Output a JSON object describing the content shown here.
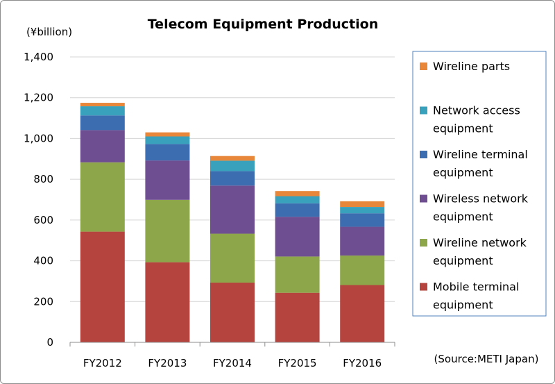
{
  "chart_data": {
    "type": "bar",
    "stacked": true,
    "title": "Telecom Equipment Production",
    "unit_label": "(¥billion)",
    "source": "(Source:METI Japan)",
    "categories": [
      "FY2012",
      "FY2013",
      "FY2014",
      "FY2015",
      "FY2016"
    ],
    "ylim": [
      0,
      1400
    ],
    "yticks": [
      0,
      200,
      400,
      600,
      800,
      1000,
      1200,
      1400
    ],
    "ytick_labels": [
      "0",
      "200",
      "400",
      "600",
      "800",
      "1,000",
      "1,200",
      "1,400"
    ],
    "grid": true,
    "legend_position": "right",
    "series": [
      {
        "name": "Mobile terminal equipment",
        "legend_lines": [
          "Mobile terminal",
          "equipment"
        ],
        "color": "#b5443f",
        "values": [
          543,
          393,
          293,
          243,
          281
        ]
      },
      {
        "name": "Wireline network equipment",
        "legend_lines": [
          "Wireline network",
          "equipment"
        ],
        "color": "#8ea64a",
        "values": [
          340,
          306,
          240,
          178,
          145
        ]
      },
      {
        "name": "Wireless network equipment",
        "legend_lines": [
          "Wireless network",
          "equipment"
        ],
        "color": "#6f4d91",
        "values": [
          158,
          193,
          236,
          195,
          141
        ]
      },
      {
        "name": "Wireline terminal equipment",
        "legend_lines": [
          "Wireline terminal",
          "equipment"
        ],
        "color": "#3c6db0",
        "values": [
          72,
          81,
          71,
          66,
          66
        ]
      },
      {
        "name": "Network access equipment",
        "legend_lines": [
          "Network access",
          "equipment"
        ],
        "color": "#39a1bc",
        "values": [
          45,
          37,
          51,
          35,
          31
        ]
      },
      {
        "name": "Wireline parts",
        "legend_lines": [
          "Wireline parts"
        ],
        "color": "#e8873a",
        "values": [
          17,
          20,
          23,
          25,
          28
        ]
      }
    ]
  }
}
